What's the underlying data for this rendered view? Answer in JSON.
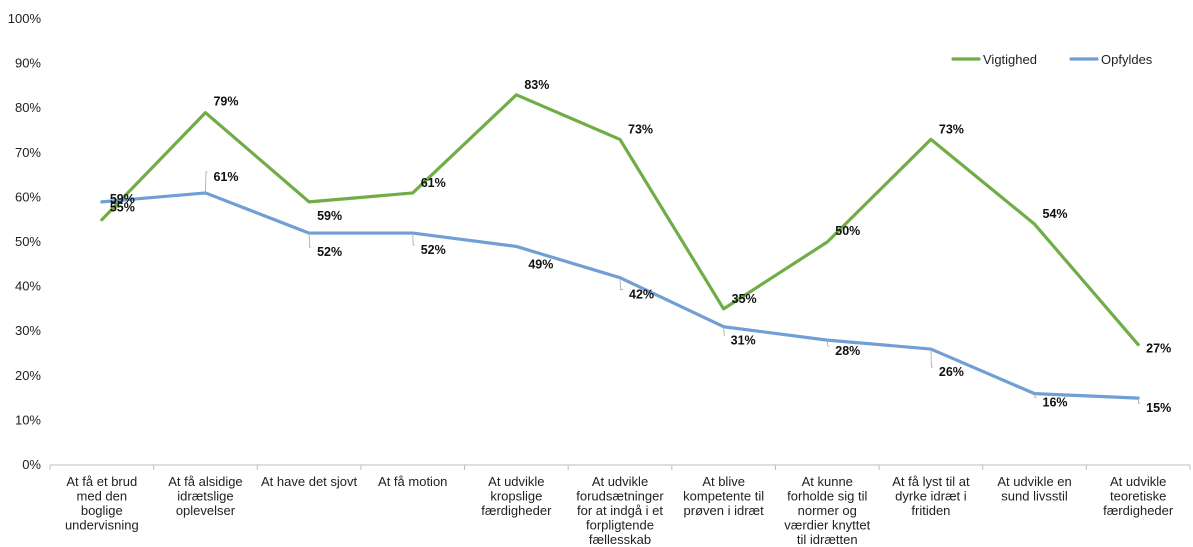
{
  "chart_data": {
    "type": "line",
    "title": "",
    "xlabel": "",
    "ylabel": "",
    "ylim": [
      0,
      100
    ],
    "yticks": [
      "0%",
      "10%",
      "20%",
      "30%",
      "40%",
      "50%",
      "60%",
      "70%",
      "80%",
      "90%",
      "100%"
    ],
    "grid": false,
    "legend_position": "top-right",
    "categories": [
      [
        "At få et brud",
        "med den",
        "boglige",
        "undervisning"
      ],
      [
        "At få alsidige",
        "idrætslige",
        "oplevelser"
      ],
      [
        "At have det sjovt"
      ],
      [
        "At få motion"
      ],
      [
        "At udvikle",
        "kropslige",
        "færdigheder"
      ],
      [
        "At udvikle",
        "forudsætninger",
        "for at indgå i et",
        "forpligtende",
        "fællesskab"
      ],
      [
        "At blive",
        "kompetente til",
        "prøven i idræt"
      ],
      [
        "At kunne",
        "forholde sig til",
        "normer og",
        "værdier knyttet",
        "til idrætten"
      ],
      [
        "At få lyst til at",
        "dyrke idræt i",
        "fritiden"
      ],
      [
        "At udvikle en",
        "sund livsstil"
      ],
      [
        "At udvikle",
        "teoretiske",
        "færdigheder"
      ]
    ],
    "series": [
      {
        "name": "Vigtighed",
        "color": "#70ad47",
        "values": [
          55,
          79,
          59,
          61,
          83,
          73,
          35,
          50,
          73,
          54,
          27
        ],
        "labels": [
          "55%",
          "79%",
          "59%",
          "61%",
          "83%",
          "73%",
          "35%",
          "50%",
          "73%",
          "54%",
          "27%"
        ]
      },
      {
        "name": "Opfyldes",
        "color": "#6f9fd4",
        "values": [
          59,
          61,
          52,
          52,
          49,
          42,
          31,
          28,
          26,
          16,
          15
        ],
        "labels": [
          "59%",
          "61%",
          "52%",
          "52%",
          "49%",
          "42%",
          "31%",
          "28%",
          "26%",
          "16%",
          "15%"
        ]
      }
    ]
  }
}
